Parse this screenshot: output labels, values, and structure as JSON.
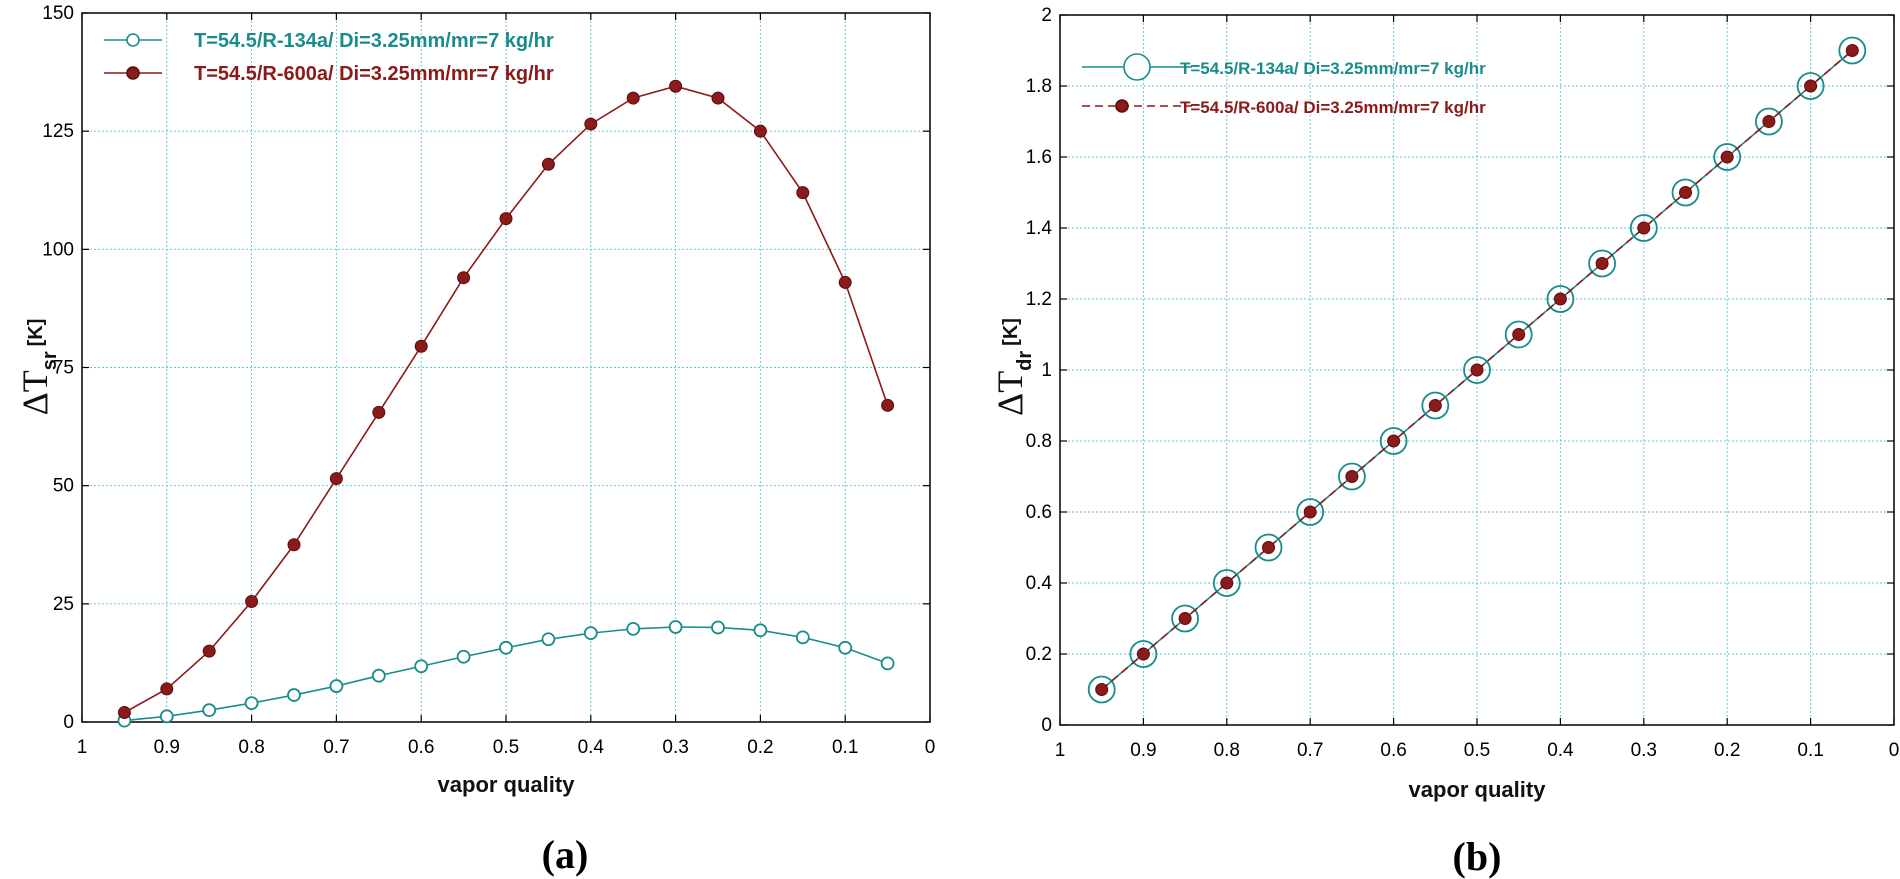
{
  "colors": {
    "teal": "#1a8c8c",
    "maroon": "#8b1a1a",
    "grid": "#5fc4d6"
  },
  "chart_data": [
    {
      "id": "a",
      "type": "line",
      "panel_label": "(a)",
      "xlabel": "vapor quality",
      "ylabel_main": "ΔT",
      "ylabel_sub": "sr",
      "ylabel_unit": "[K]",
      "xlim": [
        1,
        0
      ],
      "ylim": [
        0,
        150
      ],
      "xticks": [
        "1",
        "0.9",
        "0.8",
        "0.7",
        "0.6",
        "0.5",
        "0.4",
        "0.3",
        "0.2",
        "0.1",
        "0"
      ],
      "yticks": [
        "0",
        "25",
        "50",
        "75",
        "100",
        "125",
        "150"
      ],
      "x": [
        0.95,
        0.9,
        0.85,
        0.8,
        0.75,
        0.7,
        0.65,
        0.6,
        0.55,
        0.5,
        0.45,
        0.4,
        0.35,
        0.3,
        0.25,
        0.2,
        0.15,
        0.1,
        0.05
      ],
      "series": [
        {
          "name": "T=54.5/R-134a/ Di=3.25mm/mr=7 kg/hr",
          "color": "#1a8c8c",
          "marker": "open-circle",
          "values": [
            0.3,
            1.2,
            2.5,
            4.0,
            5.7,
            7.6,
            9.8,
            11.8,
            13.8,
            15.7,
            17.5,
            18.8,
            19.7,
            20.1,
            20.0,
            19.4,
            17.9,
            15.7,
            12.4
          ]
        },
        {
          "name": "T=54.5/R-600a/ Di=3.25mm/mr=7 kg/hr",
          "color": "#8b1a1a",
          "marker": "filled-circle",
          "values": [
            2.0,
            7.0,
            15.0,
            25.5,
            37.5,
            51.5,
            65.5,
            79.5,
            94.0,
            106.5,
            118.0,
            126.5,
            132.0,
            134.5,
            132.0,
            125.0,
            112.0,
            93.0,
            67.0
          ]
        }
      ]
    },
    {
      "id": "b",
      "type": "line",
      "panel_label": "(b)",
      "xlabel": "vapor quality",
      "ylabel_main": "ΔT",
      "ylabel_sub": "dr",
      "ylabel_unit": "[K]",
      "xlim": [
        1,
        0
      ],
      "ylim": [
        0,
        2
      ],
      "xticks": [
        "1",
        "0.9",
        "0.8",
        "0.7",
        "0.6",
        "0.5",
        "0.4",
        "0.3",
        "0.2",
        "0.1",
        "0"
      ],
      "yticks": [
        "0",
        "0.2",
        "0.4",
        "0.6",
        "0.8",
        "1",
        "1.2",
        "1.4",
        "1.6",
        "1.8",
        "2"
      ],
      "x": [
        0.95,
        0.9,
        0.85,
        0.8,
        0.75,
        0.7,
        0.65,
        0.6,
        0.55,
        0.5,
        0.45,
        0.4,
        0.35,
        0.3,
        0.25,
        0.2,
        0.15,
        0.1,
        0.05
      ],
      "series": [
        {
          "name": "T=54.5/R-134a/ Di=3.25mm/mr=7 kg/hr",
          "color": "#1a8c8c",
          "marker": "large-open-circle",
          "values": [
            0.1,
            0.2,
            0.3,
            0.4,
            0.5,
            0.6,
            0.7,
            0.8,
            0.9,
            1.0,
            1.1,
            1.2,
            1.3,
            1.4,
            1.5,
            1.6,
            1.7,
            1.8,
            1.9
          ]
        },
        {
          "name": "T=54.5/R-600a/ Di=3.25mm/mr=7 kg/hr",
          "color": "#8b1a1a",
          "marker": "filled-circle",
          "values": [
            0.1,
            0.2,
            0.3,
            0.4,
            0.5,
            0.6,
            0.7,
            0.8,
            0.9,
            1.0,
            1.1,
            1.2,
            1.3,
            1.4,
            1.5,
            1.6,
            1.7,
            1.8,
            1.9
          ]
        }
      ]
    }
  ]
}
